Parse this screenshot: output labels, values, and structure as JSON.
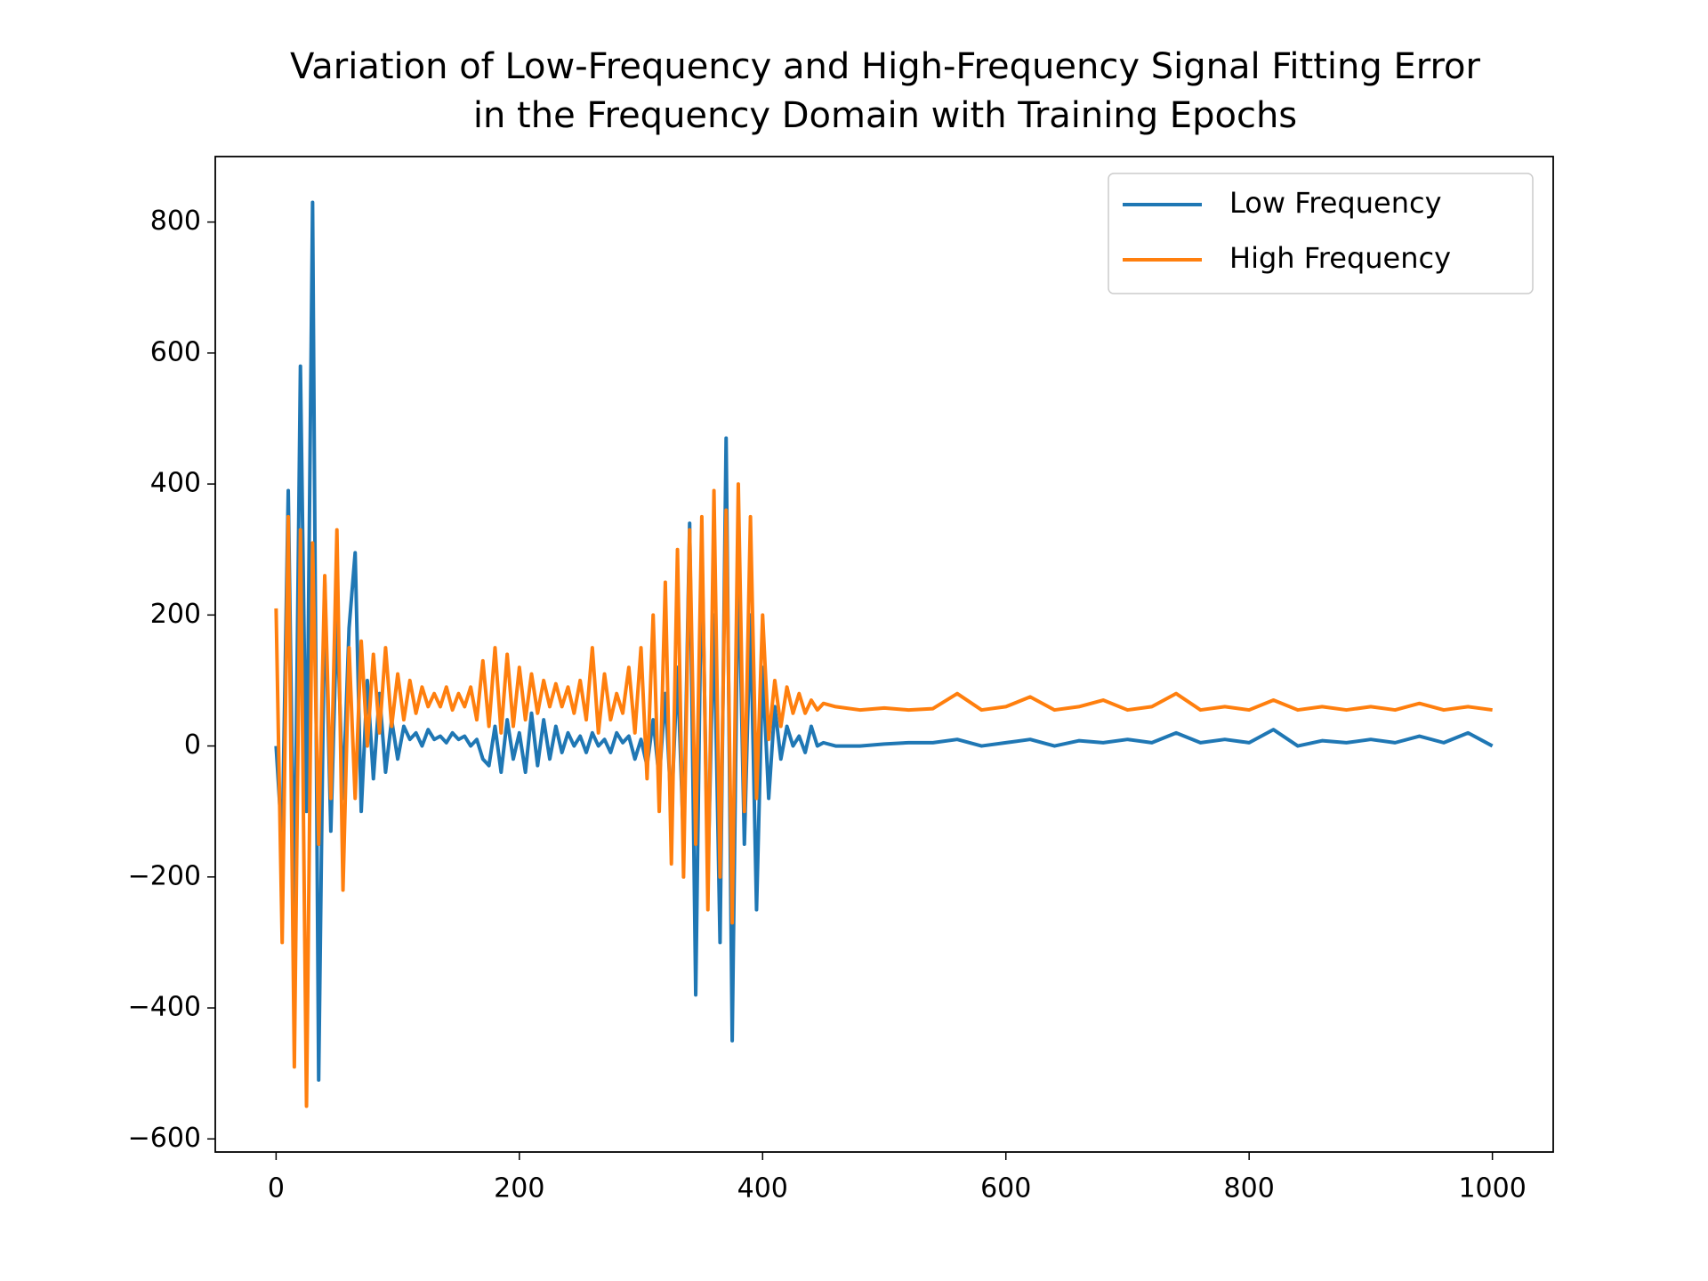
{
  "chart_data": {
    "type": "line",
    "title": [
      "Variation of Low-Frequency and High-Frequency Signal Fitting Error",
      "in the Frequency Domain with Training Epochs"
    ],
    "x": [
      0,
      5,
      10,
      15,
      20,
      25,
      30,
      35,
      40,
      45,
      50,
      55,
      60,
      65,
      70,
      75,
      80,
      85,
      90,
      95,
      100,
      105,
      110,
      115,
      120,
      125,
      130,
      135,
      140,
      145,
      150,
      155,
      160,
      165,
      170,
      175,
      180,
      185,
      190,
      195,
      200,
      205,
      210,
      215,
      220,
      225,
      230,
      235,
      240,
      245,
      250,
      255,
      260,
      265,
      270,
      275,
      280,
      285,
      290,
      295,
      300,
      305,
      310,
      315,
      320,
      325,
      330,
      335,
      340,
      345,
      350,
      355,
      360,
      365,
      370,
      375,
      380,
      385,
      390,
      395,
      400,
      405,
      410,
      415,
      420,
      425,
      430,
      435,
      440,
      445,
      450,
      460,
      480,
      500,
      520,
      540,
      560,
      580,
      600,
      620,
      640,
      660,
      680,
      700,
      720,
      740,
      760,
      780,
      800,
      820,
      840,
      860,
      880,
      900,
      920,
      940,
      960,
      980,
      1000
    ],
    "series": [
      {
        "name": "Low Frequency",
        "color": "#1f77b4",
        "values": [
          0,
          -150,
          390,
          -260,
          580,
          -100,
          830,
          -510,
          250,
          -130,
          200,
          -80,
          180,
          295,
          -100,
          100,
          -50,
          80,
          -40,
          40,
          -20,
          30,
          10,
          20,
          0,
          25,
          10,
          15,
          5,
          20,
          10,
          15,
          0,
          10,
          -20,
          -30,
          30,
          -40,
          40,
          -20,
          20,
          -40,
          50,
          -30,
          40,
          -20,
          30,
          -10,
          20,
          0,
          15,
          -10,
          20,
          0,
          10,
          -10,
          20,
          5,
          15,
          -20,
          10,
          -30,
          40,
          -50,
          80,
          -100,
          120,
          -150,
          340,
          -380,
          310,
          -200,
          200,
          -300,
          470,
          -450,
          300,
          -150,
          200,
          -250,
          120,
          -80,
          60,
          -20,
          30,
          0,
          15,
          -10,
          30,
          0,
          5,
          0,
          0,
          3,
          5,
          5,
          10,
          0,
          5,
          10,
          0,
          8,
          5,
          10,
          5,
          20,
          5,
          10,
          5,
          25,
          0,
          8,
          5,
          10,
          5,
          15,
          5,
          20,
          0
        ]
      },
      {
        "name": "High Frequency",
        "color": "#ff7f0e",
        "values": [
          210,
          -300,
          350,
          -490,
          330,
          -550,
          310,
          -150,
          260,
          -80,
          330,
          -220,
          150,
          -80,
          160,
          0,
          140,
          20,
          150,
          30,
          110,
          40,
          100,
          50,
          90,
          60,
          80,
          60,
          90,
          55,
          80,
          60,
          90,
          40,
          130,
          30,
          150,
          20,
          140,
          30,
          120,
          40,
          110,
          50,
          100,
          60,
          95,
          60,
          90,
          50,
          100,
          40,
          150,
          20,
          110,
          40,
          80,
          50,
          120,
          20,
          150,
          -50,
          200,
          -100,
          250,
          -180,
          300,
          -200,
          330,
          -150,
          350,
          -250,
          390,
          -200,
          360,
          -270,
          400,
          -100,
          350,
          -80,
          200,
          10,
          100,
          30,
          90,
          50,
          80,
          50,
          70,
          55,
          65,
          60,
          55,
          58,
          55,
          57,
          80,
          55,
          60,
          75,
          55,
          60,
          70,
          55,
          60,
          80,
          55,
          60,
          55,
          70,
          55,
          60,
          55,
          60,
          55,
          65,
          55,
          60,
          55
        ]
      }
    ],
    "xlim": [
      -50,
      1050
    ],
    "ylim": [
      -620,
      900
    ],
    "xticks": [
      0,
      200,
      400,
      600,
      800,
      1000
    ],
    "yticks": [
      {
        "value": -600,
        "label": "−600"
      },
      {
        "value": -400,
        "label": "−400"
      },
      {
        "value": -200,
        "label": "−200"
      },
      0,
      200,
      400,
      600,
      800
    ],
    "legend": "upper right",
    "grid": false
  }
}
